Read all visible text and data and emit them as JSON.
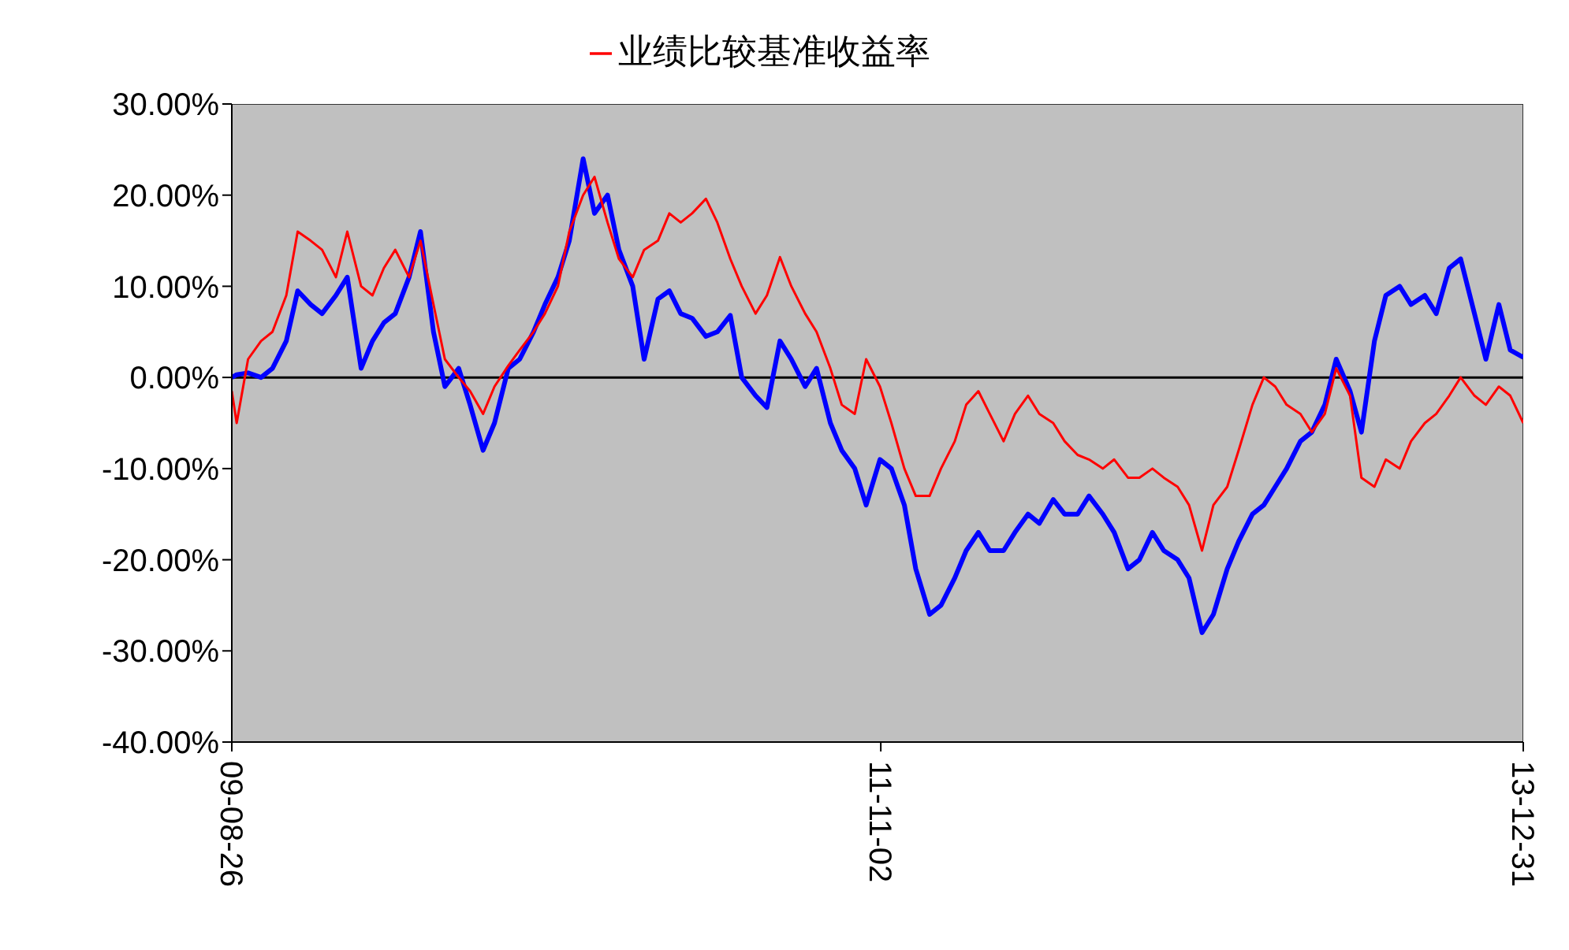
{
  "chart_data": {
    "type": "line",
    "x": [
      "2009-08-26",
      "2009-09-01",
      "2009-09-15",
      "2009-10-01",
      "2009-10-15",
      "2009-11-01",
      "2009-11-15",
      "2009-12-01",
      "2009-12-15",
      "2010-01-01",
      "2010-01-15",
      "2010-02-01",
      "2010-02-15",
      "2010-03-01",
      "2010-03-15",
      "2010-04-01",
      "2010-04-15",
      "2010-05-01",
      "2010-05-15",
      "2010-06-01",
      "2010-06-15",
      "2010-07-01",
      "2010-07-15",
      "2010-08-01",
      "2010-08-15",
      "2010-09-01",
      "2010-09-15",
      "2010-10-01",
      "2010-10-15",
      "2010-11-01",
      "2010-11-15",
      "2010-12-01",
      "2010-12-15",
      "2011-01-01",
      "2011-01-15",
      "2011-02-01",
      "2011-02-15",
      "2011-03-01",
      "2011-03-15",
      "2011-04-01",
      "2011-04-15",
      "2011-05-01",
      "2011-05-15",
      "2011-06-01",
      "2011-06-15",
      "2011-07-01",
      "2011-07-15",
      "2011-08-01",
      "2011-08-15",
      "2011-09-01",
      "2011-09-15",
      "2011-10-01",
      "2011-10-15",
      "2011-11-01",
      "2011-11-15",
      "2011-12-01",
      "2011-12-15",
      "2012-01-01",
      "2012-01-15",
      "2012-02-01",
      "2012-02-15",
      "2012-03-01",
      "2012-03-15",
      "2012-04-01",
      "2012-04-15",
      "2012-05-01",
      "2012-05-15",
      "2012-06-01",
      "2012-06-15",
      "2012-07-01",
      "2012-07-15",
      "2012-08-01",
      "2012-08-15",
      "2012-09-01",
      "2012-09-15",
      "2012-10-01",
      "2012-10-15",
      "2012-11-01",
      "2012-11-15",
      "2012-12-01",
      "2012-12-15",
      "2013-01-01",
      "2013-01-15",
      "2013-02-01",
      "2013-02-15",
      "2013-03-01",
      "2013-03-15",
      "2013-04-01",
      "2013-04-15",
      "2013-05-01",
      "2013-05-15",
      "2013-06-01",
      "2013-06-15",
      "2013-07-01",
      "2013-07-15",
      "2013-08-01",
      "2013-08-15",
      "2013-09-01",
      "2013-09-15",
      "2013-10-01",
      "2013-10-15",
      "2013-11-01",
      "2013-11-15",
      "2013-12-01",
      "2013-12-15",
      "2013-12-31"
    ],
    "series": [
      {
        "color": "#0000ff",
        "values": [
          0,
          0.3,
          0.5,
          0,
          1,
          4,
          9.5,
          8,
          7,
          9,
          11,
          1,
          4,
          6,
          7,
          11,
          16,
          5,
          -1,
          1,
          -3,
          -8,
          -5,
          1,
          2,
          5,
          8,
          11,
          15,
          24,
          18,
          20,
          14,
          10,
          2,
          8.6,
          9.5,
          7,
          6.5,
          4.5,
          5,
          6.8,
          0,
          -2,
          -3.3,
          4,
          2,
          -1,
          1,
          -5,
          -8,
          -10,
          -14,
          -9,
          -10,
          -14,
          -21,
          -26,
          -25,
          -22,
          -19,
          -17,
          -19,
          -19,
          -17,
          -15,
          -16,
          -13.4,
          -15,
          -15,
          -13,
          -15,
          -17,
          -21,
          -20,
          -17,
          -19,
          -20,
          -22,
          -28,
          -26,
          -21,
          -18,
          -15,
          -14,
          -12,
          -10,
          -7,
          -6,
          -3,
          2,
          -1.5,
          -6,
          4,
          9,
          10,
          8,
          9,
          7,
          12,
          13,
          7,
          2,
          8,
          3,
          2.2
        ]
      },
      {
        "name": "业绩比较基准收益率",
        "color": "#ff0000",
        "values": [
          -1.5,
          -5,
          2,
          4,
          5,
          9,
          16,
          15,
          14,
          11,
          16,
          10,
          9,
          12,
          14,
          11,
          15,
          8,
          2,
          0,
          -1.5,
          -4,
          -1,
          1.3,
          3,
          5,
          7,
          10,
          16,
          20,
          22,
          17,
          13,
          11,
          14,
          15,
          18,
          17,
          18,
          19.6,
          17,
          13,
          10,
          7,
          9,
          13.2,
          10,
          7,
          5,
          1,
          -3,
          -4,
          2,
          -1,
          -5,
          -10,
          -13,
          -13,
          -10,
          -7,
          -3,
          -1.5,
          -4,
          -7,
          -4,
          -2,
          -4,
          -5,
          -7,
          -8.5,
          -9,
          -10,
          -9,
          -11,
          -11,
          -10,
          -11,
          -12,
          -14,
          -19,
          -14,
          -12,
          -8,
          -3,
          0,
          -1,
          -3,
          -4,
          -6,
          -4,
          1,
          -2,
          -11,
          -12,
          -9,
          -10,
          -7,
          -5,
          -4,
          -2,
          0,
          -2,
          -3,
          -1,
          -2,
          -5
        ]
      }
    ],
    "xlim": [
      "2009-08-26",
      "2013-12-31"
    ],
    "xticks": [
      {
        "value": "2009-08-26",
        "label": "09-08-26"
      },
      {
        "value": "2011-11-02",
        "label": "11-11-02"
      },
      {
        "value": "2013-12-31",
        "label": "13-12-31"
      }
    ],
    "ylim": [
      -40,
      30
    ],
    "yticks": [
      {
        "value": -40,
        "label": "-40.00%"
      },
      {
        "value": -30,
        "label": "-30.00%"
      },
      {
        "value": -20,
        "label": "-20.00%"
      },
      {
        "value": -10,
        "label": "-10.00%"
      },
      {
        "value": 0,
        "label": "0.00%"
      },
      {
        "value": 10,
        "label": "10.00%"
      },
      {
        "value": 20,
        "label": "20.00%"
      },
      {
        "value": 30,
        "label": "30.00%"
      }
    ],
    "ref_lines": [
      {
        "axis": "y",
        "value": 0,
        "color": "#000000"
      }
    ],
    "grid": false,
    "legend": "top",
    "marker": "none",
    "line_style": "solid"
  }
}
